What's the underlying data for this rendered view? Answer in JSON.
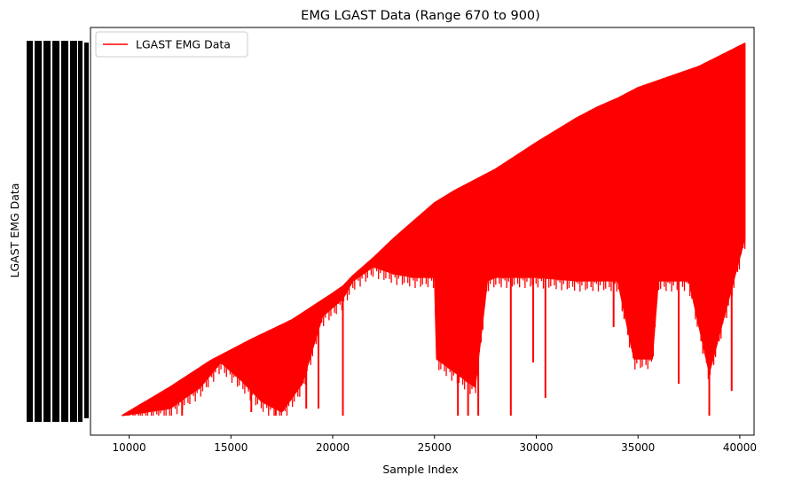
{
  "chart_data": {
    "type": "line",
    "title": "EMG LGAST Data (Range 670 to 900)",
    "xlabel": "Sample Index",
    "ylabel": "LGAST EMG Data",
    "xlim": [
      8100,
      40700
    ],
    "xticks": [
      10000,
      15000,
      20000,
      25000,
      30000,
      35000,
      40000
    ],
    "x_range": [
      9650,
      40250
    ],
    "y_range_description": "Y tick labels illegible (overlapping black marks)",
    "legend": {
      "position": "top-left",
      "entries": [
        {
          "label": "LGAST EMG Data",
          "color": "#ff0000"
        }
      ]
    },
    "grid": false,
    "series": [
      {
        "name": "LGAST EMG Data",
        "color": "#ff0000",
        "upper_envelope": {
          "x": [
            9650,
            12000,
            14000,
            16000,
            18000,
            20000,
            20500,
            21000,
            22000,
            23000,
            24000,
            25000,
            26000,
            28000,
            30000,
            32000,
            33000,
            34000,
            35000,
            36000,
            38000,
            40250
          ],
          "y": [
            0.0,
            0.08,
            0.155,
            0.215,
            0.27,
            0.345,
            0.365,
            0.395,
            0.445,
            0.5,
            0.55,
            0.6,
            0.635,
            0.695,
            0.77,
            0.84,
            0.87,
            0.895,
            0.925,
            0.945,
            0.985,
            1.05
          ]
        },
        "lower_envelope": {
          "x": [
            9650,
            12000,
            13500,
            14500,
            15500,
            16500,
            17500,
            18500,
            19500,
            20500,
            21000,
            22000,
            23000,
            24000,
            25000,
            25100,
            27000,
            27600,
            28000,
            30000,
            32000,
            34000,
            34800,
            35700,
            36000,
            37500,
            38500,
            40250
          ],
          "y": [
            0.0,
            0.02,
            0.08,
            0.15,
            0.1,
            0.04,
            0.01,
            0.09,
            0.28,
            0.33,
            0.38,
            0.42,
            0.4,
            0.39,
            0.39,
            0.16,
            0.08,
            0.38,
            0.39,
            0.39,
            0.38,
            0.38,
            0.16,
            0.16,
            0.38,
            0.38,
            0.12,
            0.5
          ]
        },
        "spikes": [
          {
            "x": 12600,
            "y": 0.0
          },
          {
            "x": 16000,
            "y": 0.01
          },
          {
            "x": 17200,
            "y": 0.0
          },
          {
            "x": 18700,
            "y": 0.02
          },
          {
            "x": 19300,
            "y": 0.02
          },
          {
            "x": 20500,
            "y": 0.0
          },
          {
            "x": 26150,
            "y": 0.0
          },
          {
            "x": 26650,
            "y": 0.0
          },
          {
            "x": 27150,
            "y": 0.0
          },
          {
            "x": 28750,
            "y": 0.0
          },
          {
            "x": 29850,
            "y": 0.15
          },
          {
            "x": 30450,
            "y": 0.05
          },
          {
            "x": 33800,
            "y": 0.25
          },
          {
            "x": 37000,
            "y": 0.09
          },
          {
            "x": 38500,
            "y": 0.0
          },
          {
            "x": 39600,
            "y": 0.07
          }
        ]
      }
    ]
  }
}
